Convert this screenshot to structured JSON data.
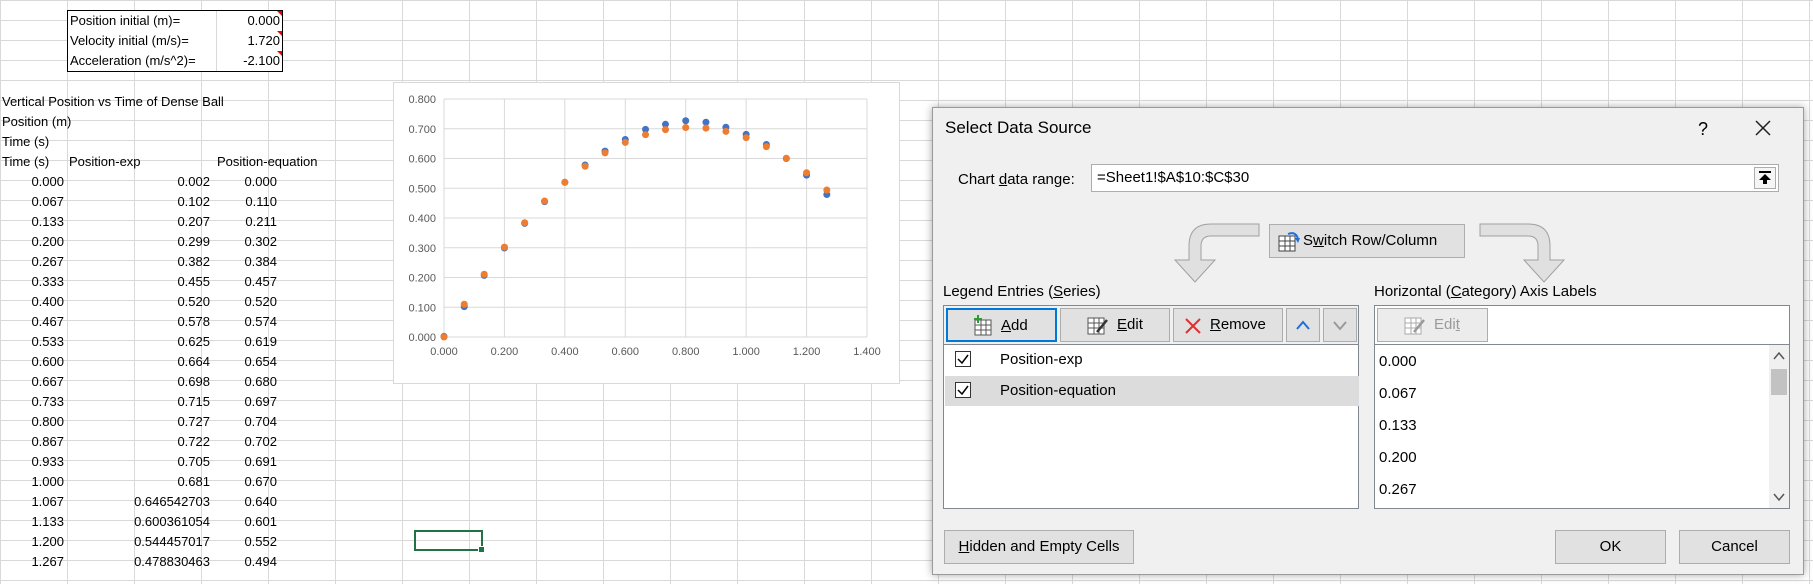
{
  "params": [
    {
      "label": "Position initial (m)=",
      "value": "0.000"
    },
    {
      "label": "Velocity initial (m/s)=",
      "value": "1.720"
    },
    {
      "label": "Acceleration (m/s^2)=",
      "value": "-2.100"
    }
  ],
  "sheet": {
    "title": "Vertical Position vs Time of Dense Ball",
    "y_caption": "Position (m)",
    "x_caption": "Time (s)",
    "headers": [
      "Time (s)",
      "Position-exp",
      "Position-equation"
    ],
    "rows": [
      [
        "0.000",
        "0.002",
        "0.000"
      ],
      [
        "0.067",
        "0.102",
        "0.110"
      ],
      [
        "0.133",
        "0.207",
        "0.211"
      ],
      [
        "0.200",
        "0.299",
        "0.302"
      ],
      [
        "0.267",
        "0.382",
        "0.384"
      ],
      [
        "0.333",
        "0.455",
        "0.457"
      ],
      [
        "0.400",
        "0.520",
        "0.520"
      ],
      [
        "0.467",
        "0.578",
        "0.574"
      ],
      [
        "0.533",
        "0.625",
        "0.619"
      ],
      [
        "0.600",
        "0.664",
        "0.654"
      ],
      [
        "0.667",
        "0.698",
        "0.680"
      ],
      [
        "0.733",
        "0.715",
        "0.697"
      ],
      [
        "0.800",
        "0.727",
        "0.704"
      ],
      [
        "0.867",
        "0.722",
        "0.702"
      ],
      [
        "0.933",
        "0.705",
        "0.691"
      ],
      [
        "1.000",
        "0.681",
        "0.670"
      ],
      [
        "1.067",
        "0.646542703",
        "0.640"
      ],
      [
        "1.133",
        "0.600361054",
        "0.601"
      ],
      [
        "1.200",
        "0.544457017",
        "0.552"
      ],
      [
        "1.267",
        "0.478830463",
        "0.494"
      ]
    ]
  },
  "chart_data": {
    "type": "scatter",
    "title": "",
    "xlabel": "",
    "ylabel": "",
    "xlim": [
      0,
      1.4
    ],
    "ylim": [
      0,
      0.8
    ],
    "x_ticks": [
      "0.000",
      "0.200",
      "0.400",
      "0.600",
      "0.800",
      "1.000",
      "1.200",
      "1.400"
    ],
    "y_ticks": [
      "0.000",
      "0.100",
      "0.200",
      "0.300",
      "0.400",
      "0.500",
      "0.600",
      "0.700",
      "0.800"
    ],
    "x": [
      0.0,
      0.067,
      0.133,
      0.2,
      0.267,
      0.333,
      0.4,
      0.467,
      0.533,
      0.6,
      0.667,
      0.733,
      0.8,
      0.867,
      0.933,
      1.0,
      1.067,
      1.133,
      1.2,
      1.267
    ],
    "series": [
      {
        "name": "Position-exp",
        "color": "#4472c4",
        "values": [
          0.002,
          0.102,
          0.207,
          0.299,
          0.382,
          0.455,
          0.52,
          0.578,
          0.625,
          0.664,
          0.698,
          0.715,
          0.727,
          0.722,
          0.705,
          0.681,
          0.647,
          0.6,
          0.544,
          0.479
        ]
      },
      {
        "name": "Position-equation",
        "color": "#ed7d31",
        "values": [
          0.0,
          0.11,
          0.211,
          0.302,
          0.384,
          0.457,
          0.52,
          0.574,
          0.619,
          0.654,
          0.68,
          0.697,
          0.704,
          0.702,
          0.691,
          0.67,
          0.64,
          0.601,
          0.552,
          0.494
        ]
      }
    ]
  },
  "dialog": {
    "title": "Select Data Source",
    "help": "?",
    "range_label_pre": "Chart ",
    "range_label_ul": "d",
    "range_label_post": "ata range:",
    "range_value": "=Sheet1!$A$10:$C$30",
    "switch_pre": "S",
    "switch_ul": "w",
    "switch_post": "itch Row/Column",
    "legend_label_pre": "Legend Entries (",
    "legend_label_ul": "S",
    "legend_label_post": "eries)",
    "axis_label_pre": "Horizontal (",
    "axis_label_ul": "C",
    "axis_label_post": "ategory) Axis Labels",
    "add_ul": "A",
    "add_post": "dd",
    "edit_ul": "E",
    "edit_post": "dit",
    "remove_ul": "R",
    "remove_post": "emove",
    "axis_edit_pre": "Edi",
    "axis_edit_ul": "t",
    "series": [
      {
        "name": "Position-exp",
        "checked": true
      },
      {
        "name": "Position-equation",
        "checked": true
      }
    ],
    "axis_labels": [
      "0.000",
      "0.067",
      "0.133",
      "0.200",
      "0.267"
    ],
    "hidden_ul": "H",
    "hidden_post": "idden and Empty Cells",
    "ok": "OK",
    "cancel": "Cancel",
    "accent": "#0078d7"
  }
}
